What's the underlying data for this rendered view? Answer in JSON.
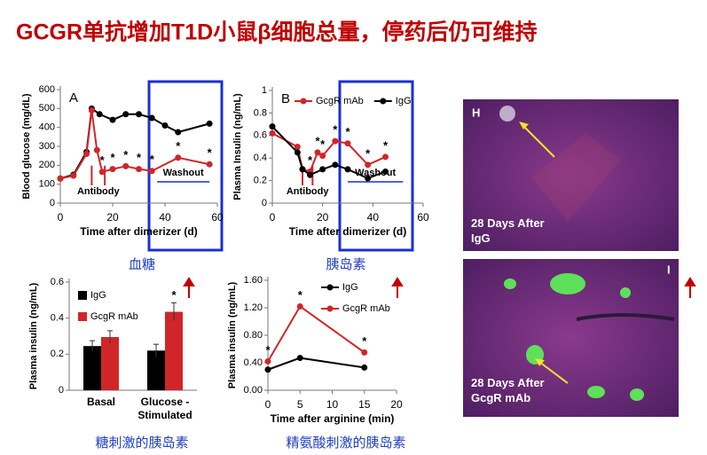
{
  "title": "GCGR单抗增加T1D小鼠β细胞总量，停药后仍可维持",
  "captions": [
    "血糖",
    "胰岛素",
    "糖刺激的胰岛素",
    "精氨酸刺激的胰岛素"
  ],
  "images": [
    {
      "label": "H",
      "caption": "28 Days After IgG"
    },
    {
      "label": "I",
      "caption": "28 Days After GcgR mAb"
    }
  ],
  "chart_data": [
    {
      "type": "line",
      "panel_label": "A",
      "ylabel": "Blood glucose (mg/dL)",
      "xlabel": "Time after dimerizer (d)",
      "xlim": [
        0,
        60
      ],
      "xticks": [
        0,
        20,
        40,
        60
      ],
      "ylim": [
        0,
        600
      ],
      "yticks": [
        0,
        100,
        200,
        300,
        400,
        500,
        600
      ],
      "annotations": [
        "Antibody",
        "Washout"
      ],
      "significance_mark": "*",
      "series": [
        {
          "color": "#000000",
          "x": [
            0,
            5,
            10,
            12,
            15,
            20,
            25,
            30,
            35,
            40,
            45,
            57
          ],
          "values": [
            130,
            150,
            270,
            500,
            470,
            440,
            470,
            470,
            450,
            410,
            375,
            420
          ],
          "significant": [
            false,
            false,
            false,
            false,
            false,
            false,
            false,
            false,
            false,
            false,
            false,
            false
          ]
        },
        {
          "color": "#d0262a",
          "x": [
            0,
            5,
            10,
            12,
            14,
            16,
            20,
            25,
            30,
            35,
            45,
            57
          ],
          "values": [
            130,
            145,
            260,
            490,
            280,
            165,
            180,
            195,
            180,
            170,
            240,
            205
          ],
          "significant": [
            false,
            false,
            false,
            false,
            false,
            true,
            true,
            true,
            true,
            true,
            true,
            true
          ]
        }
      ]
    },
    {
      "type": "line",
      "panel_label": "B",
      "ylabel": "Plasma Insulin (ng/mL)",
      "xlabel": "Time after dimerizer (d)",
      "xlim": [
        0,
        60
      ],
      "xticks": [
        0,
        20,
        40,
        60
      ],
      "ylim": [
        0,
        1
      ],
      "yticks": [
        0,
        0.2,
        0.4,
        0.6,
        0.8,
        1
      ],
      "annotations": [
        "Antibody",
        "Washout"
      ],
      "significance_mark": "*",
      "legend": "top",
      "series": [
        {
          "name": "GcgR mAb",
          "color": "#d0262a",
          "x": [
            0,
            10,
            12,
            15,
            18,
            20,
            25,
            30,
            38,
            45
          ],
          "values": [
            0.62,
            0.5,
            0.3,
            0.28,
            0.45,
            0.42,
            0.55,
            0.53,
            0.34,
            0.41
          ],
          "significant": [
            false,
            false,
            false,
            true,
            true,
            true,
            true,
            true,
            true,
            true
          ]
        },
        {
          "name": "IgG",
          "color": "#000000",
          "x": [
            0,
            10,
            12,
            15,
            20,
            25,
            30,
            38,
            45
          ],
          "values": [
            0.68,
            0.45,
            0.3,
            0.25,
            0.3,
            0.34,
            0.3,
            0.22,
            0.28
          ],
          "significant": [
            false,
            false,
            false,
            false,
            false,
            false,
            false,
            false,
            false
          ]
        }
      ]
    },
    {
      "type": "bar",
      "ylabel": "Plasma insulin (ng/mL)",
      "categories": [
        "Basal",
        "Glucose - Stimulated"
      ],
      "ylim": [
        0,
        0.6
      ],
      "yticks": [
        0,
        0.2,
        0.4,
        0.6
      ],
      "significance_mark": "*",
      "legend": "upper left",
      "series": [
        {
          "name": "IgG",
          "color": "#000000",
          "values": [
            0.245,
            0.22
          ],
          "errors": [
            0.03,
            0.035
          ],
          "significant": [
            false,
            false
          ]
        },
        {
          "name": "GcgR mAb",
          "color": "#d0262a",
          "values": [
            0.295,
            0.435
          ],
          "errors": [
            0.035,
            0.05
          ],
          "significant": [
            false,
            true
          ]
        }
      ]
    },
    {
      "type": "line",
      "ylabel": "Plasma insulin (ng/mL)",
      "xlabel": "Time after arginine (min)",
      "xlim": [
        0,
        20
      ],
      "xticks": [
        0,
        5,
        10,
        15,
        20
      ],
      "ylim": [
        0,
        1.6
      ],
      "yticks": [
        {
          "value": 0,
          "label": "0.00"
        },
        {
          "value": 0.4,
          "label": "0.40"
        },
        {
          "value": 0.8,
          "label": "0.80"
        },
        {
          "value": 1.2,
          "label": "1.20"
        },
        {
          "value": 1.6,
          "label": "1.60"
        }
      ],
      "significance_mark": "*",
      "legend": "upper right",
      "series": [
        {
          "name": "IgG",
          "color": "#000000",
          "x": [
            0,
            5,
            15
          ],
          "values": [
            0.3,
            0.47,
            0.33
          ],
          "significant": [
            false,
            false,
            false
          ]
        },
        {
          "name": "GcgR mAb",
          "color": "#d0262a",
          "x": [
            0,
            5,
            15
          ],
          "values": [
            0.42,
            1.22,
            0.55
          ],
          "significant": [
            true,
            true,
            true
          ]
        }
      ]
    }
  ]
}
